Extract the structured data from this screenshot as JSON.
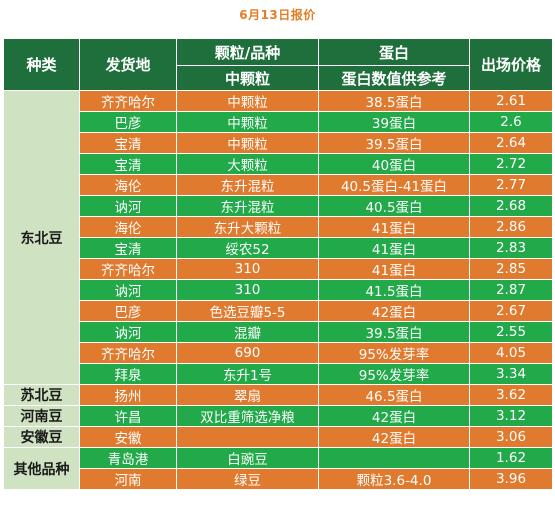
{
  "title": "6月13日报价",
  "headers": {
    "category": "种类",
    "origin": "发货地",
    "grain_top": "颗粒/品种",
    "grain_sub": "中颗粒",
    "protein_top": "蛋白",
    "protein_sub": "蛋白数值供参考",
    "price": "出场价格"
  },
  "colors": {
    "header": "#1F6F3C",
    "row_orange": "#E07A2E",
    "row_green": "#22A94A",
    "category_bg": "#CFE3C2",
    "title": "#E37D28"
  },
  "categories": {
    "dongbei": "东北豆",
    "subei": "苏北豆",
    "henan": "河南豆",
    "anhui": "安徽豆",
    "other": "其他品种"
  },
  "rows": [
    {
      "origin": "齐齐哈尔",
      "grain": "中颗粒",
      "protein": "38.5蛋白",
      "price": "2.61",
      "color": "orange"
    },
    {
      "origin": "巴彦",
      "grain": "中颗粒",
      "protein": "39蛋白",
      "price": "2.6",
      "color": "green"
    },
    {
      "origin": "宝清",
      "grain": "中颗粒",
      "protein": "39.5蛋白",
      "price": "2.64",
      "color": "orange"
    },
    {
      "origin": "宝清",
      "grain": "大颗粒",
      "protein": "40蛋白",
      "price": "2.72",
      "color": "green"
    },
    {
      "origin": "海伦",
      "grain": "东升混粒",
      "protein": "40.5蛋白-41蛋白",
      "price": "2.77",
      "color": "orange"
    },
    {
      "origin": "讷河",
      "grain": "东升混粒",
      "protein": "40.5蛋白",
      "price": "2.68",
      "color": "green"
    },
    {
      "origin": "海伦",
      "grain": "东升大颗粒",
      "protein": "41蛋白",
      "price": "2.86",
      "color": "orange"
    },
    {
      "origin": "宝清",
      "grain": "绥农52",
      "protein": "41蛋白",
      "price": "2.83",
      "color": "green"
    },
    {
      "origin": "齐齐哈尔",
      "grain": "310",
      "protein": "41蛋白",
      "price": "2.85",
      "color": "orange"
    },
    {
      "origin": "讷河",
      "grain": "310",
      "protein": "41.5蛋白",
      "price": "2.87",
      "color": "green"
    },
    {
      "origin": "巴彦",
      "grain": "色选豆瓣5-5",
      "protein": "42蛋白",
      "price": "2.67",
      "color": "orange"
    },
    {
      "origin": "讷河",
      "grain": "混瓣",
      "protein": "39.5蛋白",
      "price": "2.55",
      "color": "green"
    },
    {
      "origin": "齐齐哈尔",
      "grain": "690",
      "protein": "95%发芽率",
      "price": "4.05",
      "color": "orange"
    },
    {
      "origin": "拜泉",
      "grain": "东升1号",
      "protein": "95%发芽率",
      "price": "3.34",
      "color": "green"
    },
    {
      "origin": "扬州",
      "grain": "翠扇",
      "protein": "46.5蛋白",
      "price": "3.62",
      "color": "orange"
    },
    {
      "origin": "许昌",
      "grain": "双比重筛选净粮",
      "protein": "42蛋白",
      "price": "3.12",
      "color": "green"
    },
    {
      "origin": "安徽",
      "grain": "",
      "protein": "42蛋白",
      "price": "3.06",
      "color": "orange"
    },
    {
      "origin": "青岛港",
      "grain": "白豌豆",
      "protein": "",
      "price": "1.62",
      "color": "green"
    },
    {
      "origin": "河南",
      "grain": "绿豆",
      "protein": "颗粒3.6-4.0",
      "price": "3.96",
      "color": "orange"
    }
  ]
}
